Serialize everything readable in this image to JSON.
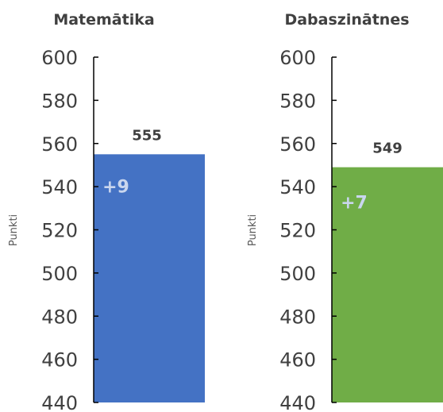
{
  "chart_data": [
    {
      "type": "bar",
      "title": "Matemātika",
      "ylabel": "Punkti",
      "ylim": [
        440,
        600
      ],
      "yticks": [
        440,
        460,
        480,
        500,
        520,
        540,
        560,
        580,
        600
      ],
      "grid": false,
      "values": [
        555
      ],
      "value_label": "555",
      "change_label": "+9",
      "color": "#4472c4"
    },
    {
      "type": "bar",
      "title": "Dabaszinātnes",
      "ylabel": "Punkti",
      "ylim": [
        440,
        600
      ],
      "yticks": [
        440,
        460,
        480,
        500,
        520,
        540,
        560,
        580,
        600
      ],
      "grid": false,
      "values": [
        549
      ],
      "value_label": "549",
      "change_label": "+7",
      "color": "#70ad47"
    }
  ]
}
